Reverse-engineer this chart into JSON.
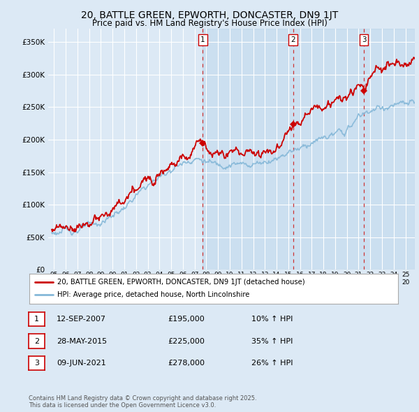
{
  "title": "20, BATTLE GREEN, EPWORTH, DONCASTER, DN9 1JT",
  "subtitle": "Price paid vs. HM Land Registry's House Price Index (HPI)",
  "bg_color": "#dce9f5",
  "plot_bg_color": "#dce9f5",
  "grid_color": "#ffffff",
  "hpi_color": "#85b8d8",
  "price_color": "#cc0000",
  "ylim": [
    0,
    370000
  ],
  "yticks": [
    0,
    50000,
    100000,
    150000,
    200000,
    250000,
    300000,
    350000
  ],
  "xlim_start": 1994.5,
  "xlim_end": 2025.8,
  "sales": [
    {
      "date_num": 2007.7,
      "price": 195000,
      "label": "1"
    },
    {
      "date_num": 2015.4,
      "price": 225000,
      "label": "2"
    },
    {
      "date_num": 2021.45,
      "price": 278000,
      "label": "3"
    }
  ],
  "legend_items": [
    {
      "label": "20, BATTLE GREEN, EPWORTH, DONCASTER, DN9 1JT (detached house)",
      "color": "#cc0000"
    },
    {
      "label": "HPI: Average price, detached house, North Lincolnshire",
      "color": "#85b8d8"
    }
  ],
  "table_rows": [
    {
      "num": "1",
      "date": "12-SEP-2007",
      "price": "£195,000",
      "hpi": "10% ↑ HPI"
    },
    {
      "num": "2",
      "date": "28-MAY-2015",
      "price": "£225,000",
      "hpi": "35% ↑ HPI"
    },
    {
      "num": "3",
      "date": "09-JUN-2021",
      "price": "£278,000",
      "hpi": "26% ↑ HPI"
    }
  ],
  "footnote": "Contains HM Land Registry data © Crown copyright and database right 2025.\nThis data is licensed under the Open Government Licence v3.0.",
  "xtick_years": [
    1995,
    1996,
    1997,
    1998,
    1999,
    2000,
    2001,
    2002,
    2003,
    2004,
    2005,
    2006,
    2007,
    2008,
    2009,
    2010,
    2011,
    2012,
    2013,
    2014,
    2015,
    2016,
    2017,
    2018,
    2019,
    2020,
    2021,
    2022,
    2023,
    2024,
    2025
  ]
}
